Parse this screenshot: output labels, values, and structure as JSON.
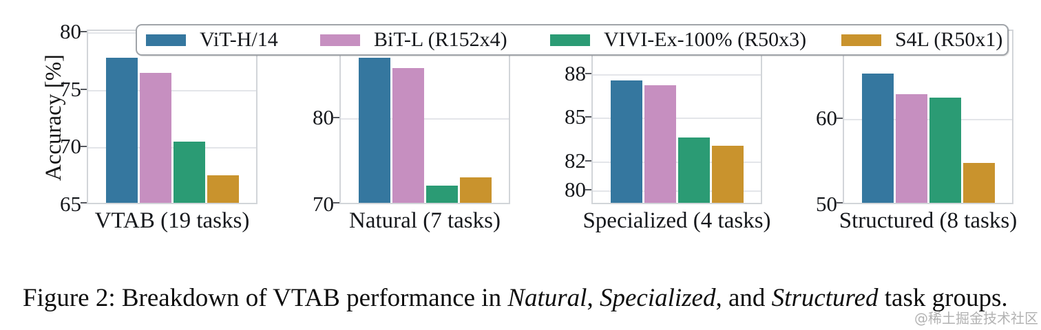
{
  "figure": {
    "caption_segments": [
      {
        "text": "Figure 2: Breakdown of VTAB performance in ",
        "italic": false
      },
      {
        "text": "Natural",
        "italic": true
      },
      {
        "text": ", ",
        "italic": false
      },
      {
        "text": "Specialized",
        "italic": true
      },
      {
        "text": ", and ",
        "italic": false
      },
      {
        "text": "Structured",
        "italic": true
      },
      {
        "text": " task groups.",
        "italic": false
      }
    ],
    "watermark": "@稀土掘金技术社区"
  },
  "chart_data": {
    "type": "bar",
    "ylabel": "Accuracy [%]",
    "grid": true,
    "legend_position": "top",
    "series": [
      {
        "name": "ViT-H/14",
        "color": "#35779F"
      },
      {
        "name": "BiT-L (R152x4)",
        "color": "#C68FC0"
      },
      {
        "name": "VIVI-Ex-100% (R50x3)",
        "color": "#2B9B74"
      },
      {
        "name": "S4L (R50x1)",
        "color": "#C9932D"
      }
    ],
    "groups": [
      {
        "label": "VTAB (19 tasks)",
        "ylim": [
          65,
          80.2
        ],
        "yticks": [
          65,
          70,
          75,
          80
        ],
        "values": [
          77.6,
          76.3,
          70.3,
          67.4
        ]
      },
      {
        "label": "Natural (7 tasks)",
        "ylim": [
          70,
          90.1
        ],
        "yticks": [
          70,
          80
        ],
        "values": [
          86.7,
          85.5,
          72.0,
          72.9
        ]
      },
      {
        "label": "Specialized (4 tasks)",
        "ylim": [
          79.0,
          91.0
        ],
        "yticks": [
          80,
          82,
          85,
          88
        ],
        "values": [
          87.4,
          87.1,
          83.5,
          82.9
        ]
      },
      {
        "label": "Structured (8 tasks)",
        "ylim": [
          50,
          70.4
        ],
        "yticks": [
          50,
          60
        ],
        "values": [
          65.1,
          62.7,
          62.3,
          54.7
        ]
      }
    ]
  }
}
